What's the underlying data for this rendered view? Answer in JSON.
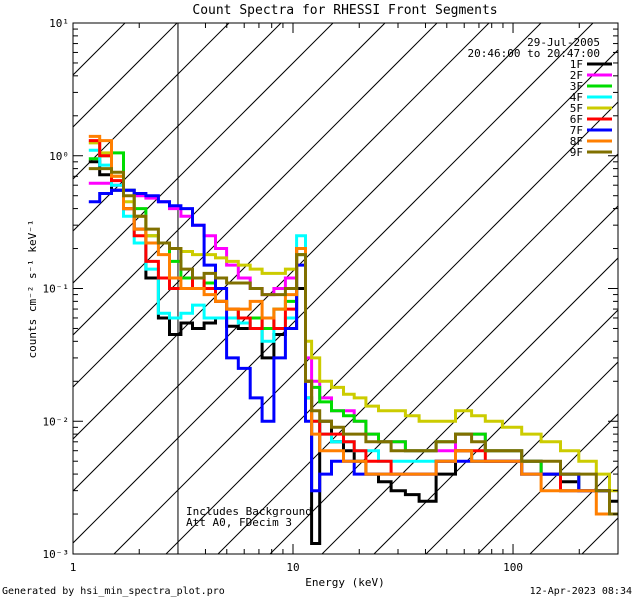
{
  "chart_data": {
    "type": "line",
    "title": "Count Spectra for RHESSI Front Segments",
    "xlabel": "Energy (keV)",
    "ylabel": "counts cm⁻² s⁻¹ keV⁻¹",
    "xscale": "log",
    "yscale": "log",
    "xlim": [
      1,
      300
    ],
    "ylim": [
      0.001,
      10
    ],
    "x_ticks": [
      {
        "value": 1,
        "label": "1"
      },
      {
        "value": 10,
        "label": "10"
      },
      {
        "value": 100,
        "label": "100"
      }
    ],
    "y_ticks": [
      {
        "value": 10,
        "label": "10¹"
      },
      {
        "value": 1,
        "label": "10⁰"
      },
      {
        "value": 0.1,
        "label": "10⁻¹"
      },
      {
        "value": 0.01,
        "label": "10⁻²"
      },
      {
        "value": 0.001,
        "label": "10⁻³"
      }
    ],
    "hatched_region": {
      "x_from": 1,
      "x_to": 3
    },
    "legend": {
      "position": "top-right",
      "date": "29-Jul-2005",
      "time_range": "20:46:00 to 20:47:00"
    },
    "annotation": [
      "Includes Background",
      "Att A0, FDecim 3"
    ],
    "series": [
      {
        "name": "1F",
        "color": "#000000",
        "x": [
          1.25,
          1.4,
          1.6,
          1.8,
          2.0,
          2.3,
          2.6,
          2.9,
          3.3,
          3.7,
          4.2,
          4.7,
          5.3,
          6.0,
          6.8,
          7.7,
          8.7,
          9.8,
          11.0,
          11.8,
          12.5,
          14,
          16,
          18,
          20,
          23,
          26,
          30,
          35,
          40,
          50,
          60,
          70,
          80,
          100,
          120,
          150,
          180,
          220,
          260,
          290
        ],
        "y": [
          0.9,
          0.72,
          0.55,
          0.4,
          0.28,
          0.12,
          0.06,
          0.045,
          0.055,
          0.05,
          0.055,
          0.06,
          0.052,
          0.05,
          0.05,
          0.03,
          0.045,
          0.05,
          0.1,
          0.015,
          0.0012,
          0.01,
          0.007,
          0.006,
          0.005,
          0.004,
          0.0035,
          0.003,
          0.0028,
          0.0025,
          0.004,
          0.006,
          0.005,
          0.005,
          0.005,
          0.005,
          0.004,
          0.0035,
          0.003,
          0.003,
          0.0025
        ]
      },
      {
        "name": "2F",
        "color": "#ff00ff",
        "x": [
          1.25,
          1.4,
          1.6,
          1.8,
          2.0,
          2.3,
          2.6,
          2.9,
          3.3,
          3.7,
          4.2,
          4.7,
          5.3,
          6.0,
          6.8,
          7.7,
          8.7,
          9.8,
          11.0,
          11.8,
          12.5,
          14,
          16,
          18,
          20,
          23,
          26,
          30,
          35,
          40,
          50,
          60,
          70,
          80,
          100,
          120,
          150,
          180,
          220,
          260,
          290
        ],
        "y": [
          0.62,
          0.62,
          0.6,
          0.55,
          0.5,
          0.48,
          0.45,
          0.4,
          0.35,
          0.3,
          0.25,
          0.2,
          0.15,
          0.12,
          0.1,
          0.09,
          0.1,
          0.12,
          0.2,
          0.03,
          0.02,
          0.015,
          0.012,
          0.012,
          0.01,
          0.008,
          0.007,
          0.007,
          0.006,
          0.006,
          0.006,
          0.008,
          0.008,
          0.006,
          0.006,
          0.005,
          0.004,
          0.004,
          0.003,
          0.003,
          0.002
        ]
      },
      {
        "name": "3F",
        "color": "#00dd00",
        "x": [
          1.25,
          1.4,
          1.6,
          1.8,
          2.0,
          2.3,
          2.6,
          2.9,
          3.3,
          3.7,
          4.2,
          4.7,
          5.3,
          6.0,
          6.8,
          7.7,
          8.7,
          9.8,
          11.0,
          11.8,
          12.5,
          14,
          16,
          18,
          20,
          23,
          26,
          30,
          35,
          40,
          50,
          60,
          70,
          80,
          100,
          120,
          150,
          180,
          220,
          260,
          290
        ],
        "y": [
          0.95,
          1.0,
          1.05,
          0.55,
          0.4,
          0.25,
          0.22,
          0.16,
          0.12,
          0.1,
          0.11,
          0.08,
          0.07,
          0.06,
          0.06,
          0.05,
          0.07,
          0.08,
          0.18,
          0.02,
          0.018,
          0.014,
          0.012,
          0.011,
          0.01,
          0.008,
          0.007,
          0.007,
          0.006,
          0.006,
          0.007,
          0.008,
          0.008,
          0.006,
          0.006,
          0.005,
          0.004,
          0.004,
          0.003,
          0.003,
          0.002
        ]
      },
      {
        "name": "4F",
        "color": "#00ffff",
        "x": [
          1.25,
          1.4,
          1.6,
          1.8,
          2.0,
          2.3,
          2.6,
          2.9,
          3.3,
          3.7,
          4.2,
          4.7,
          5.3,
          6.0,
          6.8,
          7.7,
          8.7,
          9.8,
          11.0,
          11.8,
          12.5,
          14,
          16,
          18,
          20,
          23,
          26,
          30,
          35,
          40,
          50,
          60,
          70,
          80,
          100,
          120,
          150,
          180,
          220,
          260,
          290
        ],
        "y": [
          1.1,
          0.85,
          0.6,
          0.35,
          0.22,
          0.14,
          0.065,
          0.06,
          0.065,
          0.075,
          0.06,
          0.06,
          0.06,
          0.055,
          0.05,
          0.04,
          0.05,
          0.06,
          0.25,
          0.015,
          0.01,
          0.008,
          0.007,
          0.007,
          0.006,
          0.006,
          0.005,
          0.005,
          0.005,
          0.005,
          0.005,
          0.006,
          0.005,
          0.005,
          0.005,
          0.004,
          0.004,
          0.003,
          0.003,
          0.003,
          0.002
        ]
      },
      {
        "name": "5F",
        "color": "#cccc00",
        "x": [
          1.25,
          1.4,
          1.6,
          1.8,
          2.0,
          2.3,
          2.6,
          2.9,
          3.3,
          3.7,
          4.2,
          4.7,
          5.3,
          6.0,
          6.8,
          7.7,
          8.7,
          9.8,
          11.0,
          11.8,
          12.5,
          14,
          16,
          18,
          20,
          23,
          26,
          30,
          35,
          40,
          50,
          60,
          70,
          80,
          100,
          120,
          150,
          180,
          220,
          260,
          290
        ],
        "y": [
          1.25,
          1.05,
          0.7,
          0.45,
          0.35,
          0.25,
          0.22,
          0.2,
          0.19,
          0.18,
          0.18,
          0.17,
          0.16,
          0.15,
          0.14,
          0.13,
          0.13,
          0.14,
          0.2,
          0.04,
          0.03,
          0.02,
          0.018,
          0.016,
          0.015,
          0.013,
          0.012,
          0.012,
          0.011,
          0.01,
          0.01,
          0.012,
          0.011,
          0.01,
          0.009,
          0.008,
          0.007,
          0.006,
          0.005,
          0.004,
          0.003
        ]
      },
      {
        "name": "6F",
        "color": "#ff0000",
        "x": [
          1.25,
          1.4,
          1.6,
          1.8,
          2.0,
          2.3,
          2.6,
          2.9,
          3.3,
          3.7,
          4.2,
          4.7,
          5.3,
          6.0,
          6.8,
          7.7,
          8.7,
          9.8,
          11.0,
          11.8,
          12.5,
          14,
          16,
          18,
          20,
          23,
          26,
          30,
          35,
          40,
          50,
          60,
          70,
          80,
          100,
          120,
          150,
          180,
          220,
          260,
          290
        ],
        "y": [
          1.3,
          1.0,
          0.65,
          0.4,
          0.25,
          0.16,
          0.12,
          0.1,
          0.1,
          0.12,
          0.1,
          0.08,
          0.07,
          0.06,
          0.05,
          0.06,
          0.05,
          0.07,
          0.2,
          0.02,
          0.01,
          0.008,
          0.008,
          0.007,
          0.006,
          0.005,
          0.005,
          0.004,
          0.004,
          0.004,
          0.005,
          0.006,
          0.006,
          0.005,
          0.005,
          0.004,
          0.004,
          0.003,
          0.003,
          0.003,
          0.002
        ]
      },
      {
        "name": "7F",
        "color": "#0000ff",
        "x": [
          1.25,
          1.4,
          1.6,
          1.8,
          2.0,
          2.3,
          2.6,
          2.9,
          3.3,
          3.7,
          4.2,
          4.7,
          5.3,
          6.0,
          6.8,
          7.7,
          8.7,
          9.8,
          11.0,
          11.8,
          12.5,
          14,
          16,
          18,
          20,
          23,
          26,
          30,
          35,
          40,
          50,
          60,
          70,
          80,
          100,
          120,
          150,
          180,
          220,
          260,
          290
        ],
        "y": [
          0.45,
          0.52,
          0.55,
          0.55,
          0.52,
          0.5,
          0.45,
          0.42,
          0.4,
          0.3,
          0.15,
          0.1,
          0.03,
          0.025,
          0.015,
          0.01,
          0.03,
          0.05,
          0.15,
          0.01,
          0.003,
          0.004,
          0.005,
          0.005,
          0.004,
          0.004,
          0.004,
          0.004,
          0.004,
          0.004,
          0.005,
          0.005,
          0.005,
          0.005,
          0.005,
          0.004,
          0.004,
          0.004,
          0.003,
          0.003,
          0.002
        ]
      },
      {
        "name": "8F",
        "color": "#ff7f00",
        "x": [
          1.25,
          1.4,
          1.6,
          1.8,
          2.0,
          2.3,
          2.6,
          2.9,
          3.3,
          3.7,
          4.2,
          4.7,
          5.3,
          6.0,
          6.8,
          7.7,
          8.7,
          9.8,
          11.0,
          11.8,
          12.5,
          14,
          16,
          18,
          20,
          23,
          26,
          30,
          35,
          40,
          50,
          60,
          70,
          80,
          100,
          120,
          150,
          180,
          220,
          260,
          290
        ],
        "y": [
          1.4,
          1.3,
          0.7,
          0.4,
          0.28,
          0.22,
          0.18,
          0.12,
          0.1,
          0.1,
          0.09,
          0.08,
          0.07,
          0.07,
          0.08,
          0.06,
          0.07,
          0.09,
          0.2,
          0.02,
          0.008,
          0.006,
          0.006,
          0.005,
          0.005,
          0.004,
          0.004,
          0.004,
          0.004,
          0.004,
          0.005,
          0.006,
          0.005,
          0.005,
          0.005,
          0.004,
          0.003,
          0.003,
          0.003,
          0.002,
          0.002
        ]
      },
      {
        "name": "9F",
        "color": "#807000",
        "x": [
          1.25,
          1.4,
          1.6,
          1.8,
          2.0,
          2.3,
          2.6,
          2.9,
          3.3,
          3.7,
          4.2,
          4.7,
          5.3,
          6.0,
          6.8,
          7.7,
          8.7,
          9.8,
          11.0,
          11.8,
          12.5,
          14,
          16,
          18,
          20,
          23,
          26,
          30,
          35,
          40,
          50,
          60,
          70,
          80,
          100,
          120,
          150,
          180,
          220,
          260,
          290
        ],
        "y": [
          0.8,
          0.8,
          0.75,
          0.5,
          0.35,
          0.28,
          0.22,
          0.2,
          0.14,
          0.12,
          0.13,
          0.12,
          0.11,
          0.11,
          0.1,
          0.09,
          0.09,
          0.1,
          0.18,
          0.02,
          0.012,
          0.01,
          0.009,
          0.008,
          0.008,
          0.007,
          0.007,
          0.006,
          0.006,
          0.006,
          0.007,
          0.008,
          0.007,
          0.006,
          0.006,
          0.005,
          0.005,
          0.004,
          0.004,
          0.003,
          0.002
        ]
      }
    ]
  },
  "footer": {
    "generated_by": "Generated by hsi_min_spectra_plot.pro",
    "timestamp": "12-Apr-2023 08:34"
  }
}
